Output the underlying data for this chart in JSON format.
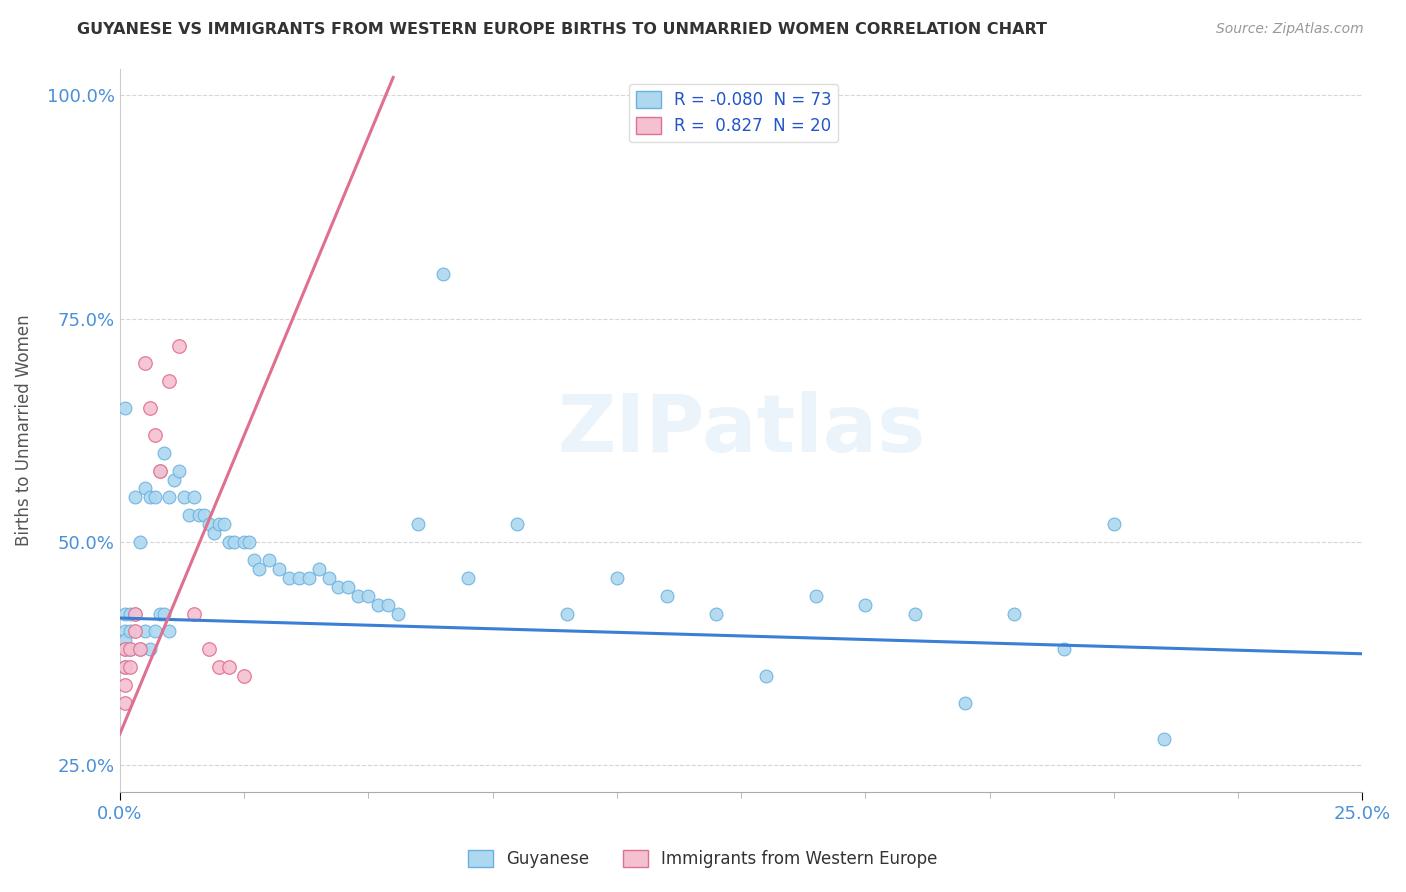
{
  "title": "GUYANESE VS IMMIGRANTS FROM WESTERN EUROPE BIRTHS TO UNMARRIED WOMEN CORRELATION CHART",
  "source": "Source: ZipAtlas.com",
  "ylabel": "Births to Unmarried Women",
  "R_blue": -0.08,
  "N_blue": 73,
  "R_pink": 0.827,
  "N_pink": 20,
  "blue_color": "#add8f0",
  "blue_edge_color": "#6ab0e0",
  "blue_line_color": "#3a7fd5",
  "pink_color": "#f5c0d0",
  "pink_edge_color": "#e07090",
  "pink_line_color": "#e07090",
  "title_color": "#333333",
  "source_color": "#999999",
  "axis_label_color": "#555555",
  "tick_color": "#4a90d9",
  "watermark": "ZIPatlas",
  "xmin": 0.0,
  "xmax": 0.25,
  "ymin": 0.22,
  "ymax": 1.03,
  "blue_line_x0": 0.0,
  "blue_line_y0": 0.415,
  "blue_line_x1": 0.25,
  "blue_line_y1": 0.375,
  "pink_line_x0": 0.0,
  "pink_line_y0": 0.285,
  "pink_line_x1": 0.055,
  "pink_line_y1": 1.02,
  "blue_x": [
    0.001,
    0.001,
    0.001,
    0.001,
    0.001,
    0.001,
    0.002,
    0.002,
    0.002,
    0.003,
    0.003,
    0.004,
    0.004,
    0.005,
    0.005,
    0.006,
    0.006,
    0.007,
    0.007,
    0.008,
    0.008,
    0.009,
    0.009,
    0.01,
    0.01,
    0.011,
    0.012,
    0.013,
    0.014,
    0.015,
    0.016,
    0.017,
    0.018,
    0.019,
    0.02,
    0.021,
    0.022,
    0.023,
    0.025,
    0.026,
    0.027,
    0.028,
    0.03,
    0.032,
    0.034,
    0.036,
    0.038,
    0.04,
    0.042,
    0.044,
    0.046,
    0.048,
    0.05,
    0.052,
    0.054,
    0.056,
    0.06,
    0.065,
    0.07,
    0.08,
    0.09,
    0.1,
    0.11,
    0.12,
    0.13,
    0.14,
    0.15,
    0.16,
    0.17,
    0.18,
    0.19,
    0.2,
    0.21
  ],
  "blue_y": [
    0.42,
    0.4,
    0.39,
    0.38,
    0.36,
    0.65,
    0.42,
    0.4,
    0.38,
    0.55,
    0.42,
    0.5,
    0.38,
    0.56,
    0.4,
    0.55,
    0.38,
    0.55,
    0.4,
    0.58,
    0.42,
    0.6,
    0.42,
    0.55,
    0.4,
    0.57,
    0.58,
    0.55,
    0.53,
    0.55,
    0.53,
    0.53,
    0.52,
    0.51,
    0.52,
    0.52,
    0.5,
    0.5,
    0.5,
    0.5,
    0.48,
    0.47,
    0.48,
    0.47,
    0.46,
    0.46,
    0.46,
    0.47,
    0.46,
    0.45,
    0.45,
    0.44,
    0.44,
    0.43,
    0.43,
    0.42,
    0.52,
    0.8,
    0.46,
    0.52,
    0.42,
    0.46,
    0.44,
    0.42,
    0.35,
    0.44,
    0.43,
    0.42,
    0.32,
    0.42,
    0.38,
    0.52,
    0.28
  ],
  "pink_x": [
    0.001,
    0.001,
    0.001,
    0.001,
    0.002,
    0.002,
    0.003,
    0.003,
    0.004,
    0.005,
    0.006,
    0.007,
    0.008,
    0.01,
    0.012,
    0.015,
    0.018,
    0.02,
    0.022,
    0.025
  ],
  "pink_y": [
    0.38,
    0.36,
    0.34,
    0.32,
    0.38,
    0.36,
    0.42,
    0.4,
    0.38,
    0.7,
    0.65,
    0.62,
    0.58,
    0.68,
    0.72,
    0.42,
    0.38,
    0.36,
    0.36,
    0.35
  ]
}
